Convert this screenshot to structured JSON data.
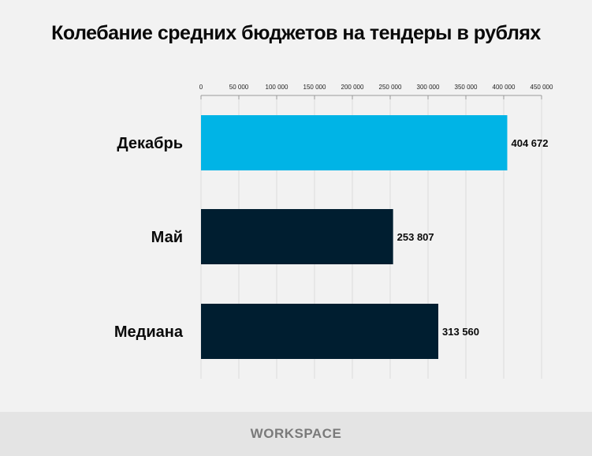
{
  "chart_data": {
    "type": "bar",
    "orientation": "horizontal",
    "title": "Колебание средних бюджетов на тендеры в рублях",
    "categories": [
      "Декабрь",
      "Май",
      "Медиана"
    ],
    "values": [
      404672,
      253807,
      313560
    ],
    "value_labels": [
      "404 672",
      "253 807",
      "313 560"
    ],
    "colors": [
      "#00b4e6",
      "#001e30",
      "#001e30"
    ],
    "xlim": [
      0,
      450000
    ],
    "ticks": [
      0,
      50000,
      100000,
      150000,
      200000,
      250000,
      300000,
      350000,
      400000,
      450000
    ],
    "tick_labels": [
      "0",
      "50 000",
      "100 000",
      "150 000",
      "200 000",
      "250 000",
      "300 000",
      "350 000",
      "400 000",
      "450 000"
    ],
    "axis_position": "top",
    "grid": true
  },
  "footer": {
    "logo": "WORKSPACE"
  }
}
